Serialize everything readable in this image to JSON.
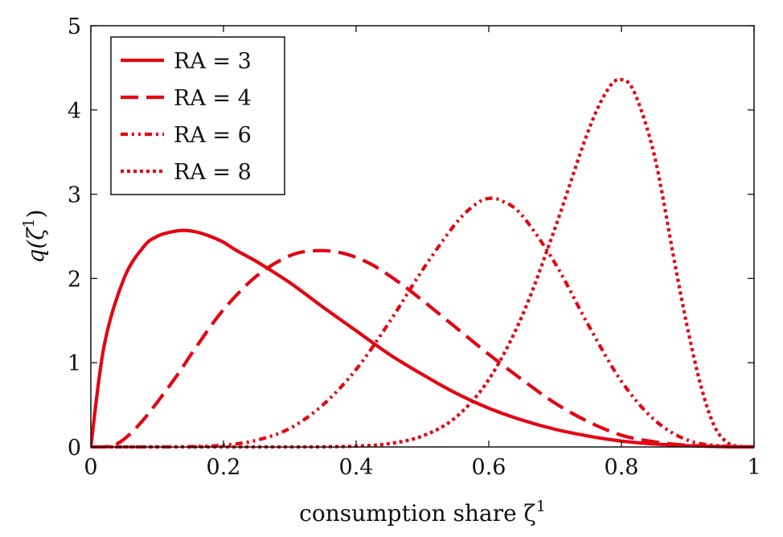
{
  "chart_data": {
    "type": "line",
    "title": "",
    "xlabel": "consumption share ζ",
    "xlabel_sup": "1",
    "ylabel": "q(ζ",
    "ylabel_sup": "1",
    "ylabel_close": ")",
    "xlim": [
      0,
      1
    ],
    "ylim": [
      0,
      5
    ],
    "xticks": [
      0,
      0.2,
      0.4,
      0.6,
      0.8,
      1
    ],
    "xtick_labels": [
      "0",
      "0.2",
      "0.4",
      "0.6",
      "0.8",
      "1"
    ],
    "yticks": [
      0,
      1,
      2,
      3,
      4,
      5
    ],
    "ytick_labels": [
      "0",
      "1",
      "2",
      "3",
      "4",
      "5"
    ],
    "grid": false,
    "legend_position": "top-left",
    "color": "#e30613",
    "series": [
      {
        "name": "RA = 3",
        "dash": "solid",
        "x": [
          0,
          0.02,
          0.05,
          0.08,
          0.1,
          0.12,
          0.14,
          0.16,
          0.18,
          0.2,
          0.22,
          0.25,
          0.3,
          0.35,
          0.4,
          0.45,
          0.5,
          0.55,
          0.6,
          0.65,
          0.7,
          0.75,
          0.8,
          0.85,
          0.9,
          0.95,
          1
        ],
        "y": [
          0,
          1.2,
          2.0,
          2.38,
          2.5,
          2.55,
          2.57,
          2.55,
          2.5,
          2.43,
          2.33,
          2.2,
          1.95,
          1.66,
          1.38,
          1.1,
          0.86,
          0.64,
          0.46,
          0.32,
          0.21,
          0.13,
          0.07,
          0.035,
          0.015,
          0.004,
          0
        ]
      },
      {
        "name": "RA = 4",
        "dash": "long-dash",
        "x": [
          0,
          0.02,
          0.04,
          0.06,
          0.08,
          0.1,
          0.13,
          0.16,
          0.2,
          0.25,
          0.3,
          0.34,
          0.38,
          0.42,
          0.46,
          0.5,
          0.55,
          0.6,
          0.65,
          0.7,
          0.75,
          0.8,
          0.85,
          0.9,
          0.95,
          1
        ],
        "y": [
          0,
          0.0,
          0.04,
          0.16,
          0.33,
          0.53,
          0.85,
          1.2,
          1.63,
          2.03,
          2.27,
          2.33,
          2.3,
          2.18,
          1.98,
          1.74,
          1.42,
          1.1,
          0.8,
          0.52,
          0.3,
          0.14,
          0.06,
          0.02,
          0.005,
          0
        ]
      },
      {
        "name": "RA = 6",
        "dash": "dash-dot-dot",
        "x": [
          0,
          0.1,
          0.15,
          0.2,
          0.25,
          0.3,
          0.35,
          0.4,
          0.45,
          0.5,
          0.55,
          0.58,
          0.6,
          0.62,
          0.65,
          0.7,
          0.75,
          0.8,
          0.85,
          0.9,
          0.95,
          1
        ],
        "y": [
          0,
          0.0,
          0.004,
          0.02,
          0.08,
          0.22,
          0.5,
          0.92,
          1.48,
          2.1,
          2.65,
          2.88,
          2.95,
          2.92,
          2.75,
          2.18,
          1.45,
          0.78,
          0.32,
          0.08,
          0.012,
          0
        ]
      },
      {
        "name": "RA = 8",
        "dash": "dotted",
        "x": [
          0,
          0.3,
          0.35,
          0.4,
          0.45,
          0.5,
          0.55,
          0.6,
          0.65,
          0.7,
          0.75,
          0.78,
          0.8,
          0.82,
          0.85,
          0.88,
          0.9,
          0.92,
          0.94,
          0.96,
          0.98,
          1
        ],
        "y": [
          0,
          0.0,
          0.002,
          0.01,
          0.04,
          0.13,
          0.35,
          0.8,
          1.55,
          2.6,
          3.75,
          4.25,
          4.36,
          4.2,
          3.45,
          2.2,
          1.4,
          0.72,
          0.25,
          0.05,
          0.005,
          0
        ]
      }
    ]
  }
}
